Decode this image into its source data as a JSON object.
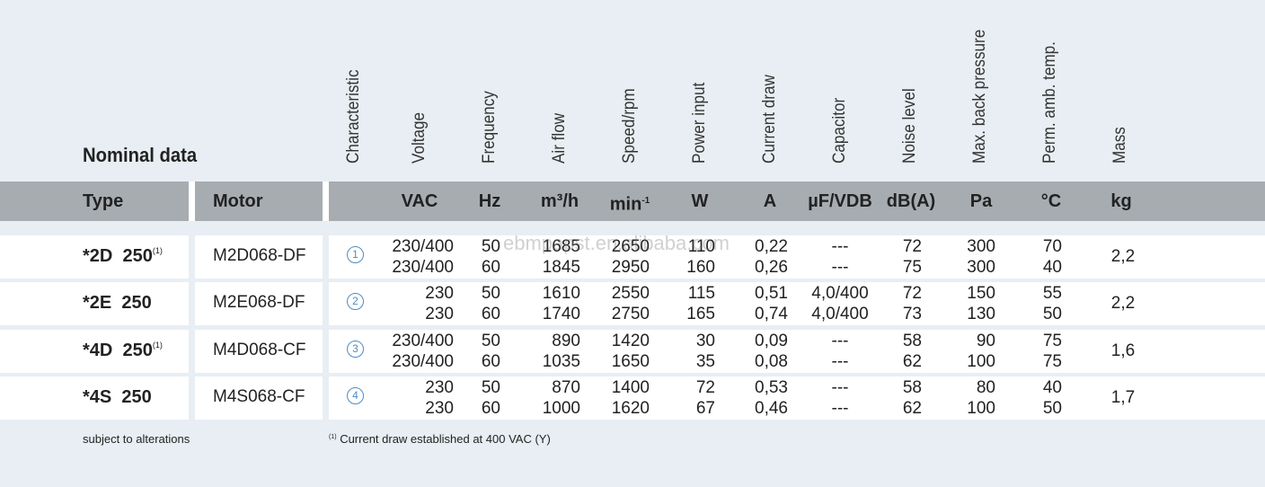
{
  "title": "Nominal data",
  "headers": {
    "type": "Type",
    "motor": "Motor",
    "characteristic": "Characteristic",
    "voltage": "Voltage",
    "frequency": "Frequency",
    "airflow": "Air flow",
    "speed": "Speed/rpm",
    "power": "Power input",
    "current": "Current draw",
    "capacitor": "Capacitor",
    "noise": "Noise level",
    "backpressure": "Max. back pressure",
    "ambtemp": "Perm. amb. temp.",
    "mass": "Mass"
  },
  "units": {
    "voltage": "VAC",
    "frequency": "Hz",
    "airflow": "m³/h",
    "speed_base": "min",
    "speed_exp": "-1",
    "power": "W",
    "current": "A",
    "capacitor": "µF/VDB",
    "noise": "dB(A)",
    "backpressure": "Pa",
    "ambtemp": "°C",
    "mass": "kg"
  },
  "rows": [
    {
      "type": "*2D  250",
      "type_note": "(1)",
      "motor": "M2D068-DF",
      "characteristic": "1",
      "voltage": [
        "230/400",
        "230/400"
      ],
      "frequency": [
        "50",
        "60"
      ],
      "airflow": [
        "1685",
        "1845"
      ],
      "speed": [
        "2650",
        "2950"
      ],
      "power": [
        "110",
        "160"
      ],
      "current": [
        "0,22",
        "0,26"
      ],
      "capacitor": [
        "---",
        "---"
      ],
      "noise": [
        "72",
        "75"
      ],
      "backpressure": [
        "300",
        "300"
      ],
      "ambtemp": [
        "70",
        "40"
      ],
      "mass": "2,2"
    },
    {
      "type": "*2E  250",
      "type_note": "",
      "motor": "M2E068-DF",
      "characteristic": "2",
      "voltage": [
        "230",
        "230"
      ],
      "frequency": [
        "50",
        "60"
      ],
      "airflow": [
        "1610",
        "1740"
      ],
      "speed": [
        "2550",
        "2750"
      ],
      "power": [
        "115",
        "165"
      ],
      "current": [
        "0,51",
        "0,74"
      ],
      "capacitor": [
        "4,0/400",
        "4,0/400"
      ],
      "noise": [
        "72",
        "73"
      ],
      "backpressure": [
        "150",
        "130"
      ],
      "ambtemp": [
        "55",
        "50"
      ],
      "mass": "2,2"
    },
    {
      "type": "*4D  250",
      "type_note": "(1)",
      "motor": "M4D068-CF",
      "characteristic": "3",
      "voltage": [
        "230/400",
        "230/400"
      ],
      "frequency": [
        "50",
        "60"
      ],
      "airflow": [
        "890",
        "1035"
      ],
      "speed": [
        "1420",
        "1650"
      ],
      "power": [
        "30",
        "35"
      ],
      "current": [
        "0,09",
        "0,08"
      ],
      "capacitor": [
        "---",
        "---"
      ],
      "noise": [
        "58",
        "62"
      ],
      "backpressure": [
        "90",
        "100"
      ],
      "ambtemp": [
        "75",
        "75"
      ],
      "mass": "1,6"
    },
    {
      "type": "*4S  250",
      "type_note": "",
      "motor": "M4S068-CF",
      "characteristic": "4",
      "voltage": [
        "230",
        "230"
      ],
      "frequency": [
        "50",
        "60"
      ],
      "airflow": [
        "870",
        "1000"
      ],
      "speed": [
        "1400",
        "1620"
      ],
      "power": [
        "72",
        "67"
      ],
      "current": [
        "0,53",
        "0,46"
      ],
      "capacitor": [
        "---",
        "---"
      ],
      "noise": [
        "58",
        "62"
      ],
      "backpressure": [
        "80",
        "100"
      ],
      "ambtemp": [
        "40",
        "50"
      ],
      "mass": "1,7"
    }
  ],
  "footnote_left": "subject to alterations",
  "footnote_mark": "(1)",
  "footnote_right": "Current draw established at 400 VAC (Y)",
  "watermark": "ebmpapst.en.alibaba.com"
}
